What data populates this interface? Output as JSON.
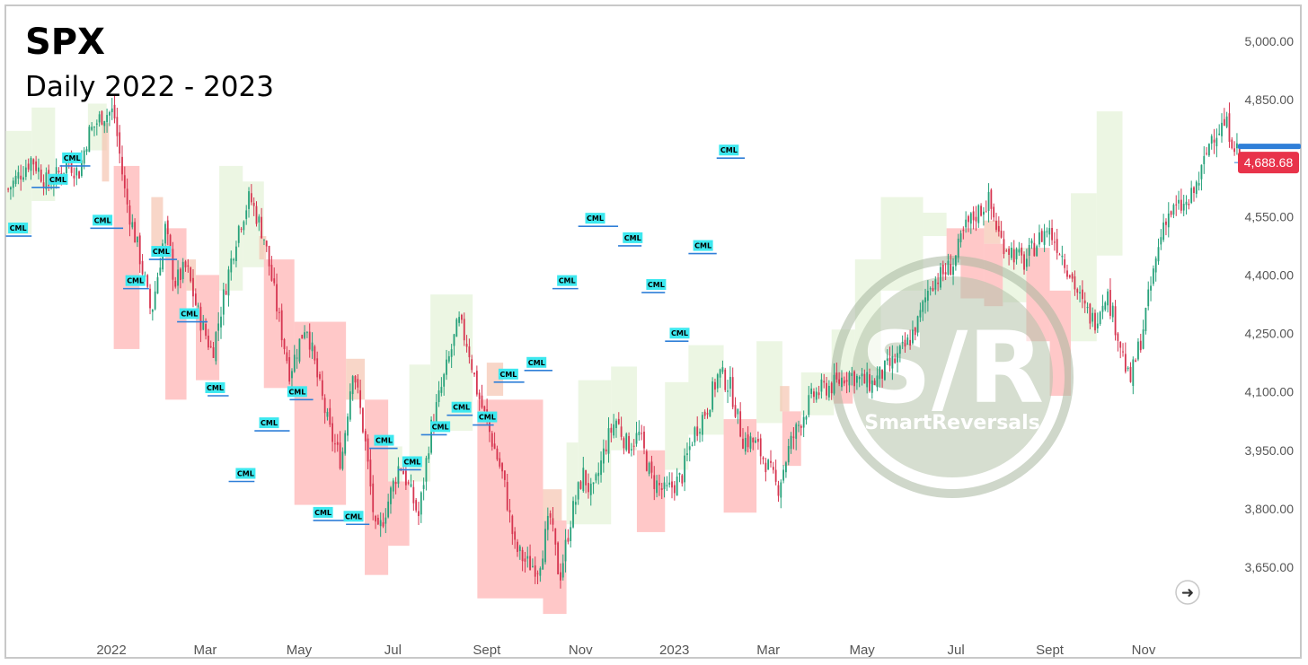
{
  "chart_data": {
    "type": "candlestick",
    "title": "SPX",
    "subtitle": "Daily 2022 - 2023",
    "ylim": [
      3520,
      5040
    ],
    "y_ticks": [
      "5,000.00",
      "4,850.00",
      "4,550.00",
      "4,400.00",
      "4,250.00",
      "4,100.00",
      "3,950.00",
      "3,800.00",
      "3,650.00"
    ],
    "y_tick_values": [
      5000,
      4850,
      4550,
      4400,
      4250,
      4100,
      3950,
      3800,
      3650
    ],
    "x_ticks": [
      {
        "label": "2022",
        "t": 6
      },
      {
        "label": "Mar",
        "t": 10
      },
      {
        "label": "May",
        "t": 14
      },
      {
        "label": "Jul",
        "t": 18
      },
      {
        "label": "Sept",
        "t": 22
      },
      {
        "label": "Nov",
        "t": 26
      },
      {
        "label": "2023",
        "t": 30
      },
      {
        "label": "Mar",
        "t": 34
      },
      {
        "label": "May",
        "t": 38
      },
      {
        "label": "Jul",
        "t": 42
      },
      {
        "label": "Sept",
        "t": 46
      },
      {
        "label": "Nov",
        "t": 50
      }
    ],
    "t_range": [
      1.5,
      54.3
    ],
    "last_price": "4,688.68",
    "last_price_value": 4688.68,
    "cml_label": "CML",
    "price_path": [
      [
        1.6,
        4620
      ],
      [
        2.6,
        4700
      ],
      [
        3.3,
        4630
      ],
      [
        4.2,
        4690
      ],
      [
        4.6,
        4660
      ],
      [
        5.0,
        4760
      ],
      [
        5.6,
        4810
      ],
      [
        6.1,
        4820
      ],
      [
        6.6,
        4600
      ],
      [
        7.2,
        4450
      ],
      [
        7.7,
        4300
      ],
      [
        8.3,
        4520
      ],
      [
        8.7,
        4380
      ],
      [
        9.2,
        4420
      ],
      [
        9.7,
        4300
      ],
      [
        10.3,
        4200
      ],
      [
        10.9,
        4380
      ],
      [
        11.4,
        4520
      ],
      [
        11.9,
        4600
      ],
      [
        12.5,
        4500
      ],
      [
        13.1,
        4300
      ],
      [
        13.6,
        4150
      ],
      [
        14.3,
        4280
      ],
      [
        14.8,
        4130
      ],
      [
        15.3,
        4000
      ],
      [
        15.8,
        3920
      ],
      [
        16.3,
        4170
      ],
      [
        16.8,
        3980
      ],
      [
        17.3,
        3720
      ],
      [
        17.8,
        3820
      ],
      [
        18.3,
        3920
      ],
      [
        19.1,
        3780
      ],
      [
        19.6,
        4000
      ],
      [
        20.2,
        4140
      ],
      [
        20.8,
        4280
      ],
      [
        21.2,
        4220
      ],
      [
        21.6,
        4100
      ],
      [
        22.2,
        3980
      ],
      [
        22.7,
        3880
      ],
      [
        23.2,
        3700
      ],
      [
        23.7,
        3660
      ],
      [
        24.2,
        3650
      ],
      [
        24.7,
        3780
      ],
      [
        25.1,
        3620
      ],
      [
        25.6,
        3780
      ],
      [
        26.1,
        3890
      ],
      [
        26.5,
        3830
      ],
      [
        27.1,
        3970
      ],
      [
        27.5,
        4030
      ],
      [
        28.0,
        3960
      ],
      [
        28.5,
        3990
      ],
      [
        29.0,
        3880
      ],
      [
        29.6,
        3840
      ],
      [
        30.3,
        3880
      ],
      [
        30.8,
        3990
      ],
      [
        31.4,
        4060
      ],
      [
        31.9,
        4150
      ],
      [
        32.4,
        4110
      ],
      [
        32.9,
        3980
      ],
      [
        33.4,
        3970
      ],
      [
        33.9,
        3920
      ],
      [
        34.4,
        3850
      ],
      [
        34.9,
        3960
      ],
      [
        35.4,
        4030
      ],
      [
        35.9,
        4090
      ],
      [
        36.4,
        4110
      ],
      [
        36.9,
        4120
      ],
      [
        37.4,
        4150
      ],
      [
        37.9,
        4130
      ],
      [
        38.4,
        4120
      ],
      [
        38.9,
        4150
      ],
      [
        39.4,
        4180
      ],
      [
        39.9,
        4220
      ],
      [
        40.4,
        4280
      ],
      [
        40.9,
        4380
      ],
      [
        41.4,
        4400
      ],
      [
        41.9,
        4430
      ],
      [
        42.4,
        4520
      ],
      [
        42.9,
        4560
      ],
      [
        43.4,
        4590
      ],
      [
        43.9,
        4490
      ],
      [
        44.4,
        4460
      ],
      [
        44.9,
        4430
      ],
      [
        45.4,
        4480
      ],
      [
        45.9,
        4520
      ],
      [
        46.4,
        4470
      ],
      [
        46.9,
        4400
      ],
      [
        47.4,
        4320
      ],
      [
        47.9,
        4280
      ],
      [
        48.4,
        4360
      ],
      [
        48.9,
        4250
      ],
      [
        49.4,
        4120
      ],
      [
        49.9,
        4240
      ],
      [
        50.4,
        4400
      ],
      [
        50.9,
        4550
      ],
      [
        51.4,
        4570
      ],
      [
        51.9,
        4580
      ],
      [
        52.4,
        4650
      ],
      [
        52.9,
        4760
      ],
      [
        53.5,
        4790
      ],
      [
        54.2,
        4690
      ]
    ],
    "zones": [
      {
        "t0": 1.5,
        "t1": 2.6,
        "y0": 4505,
        "y1": 4770,
        "color": "green"
      },
      {
        "t0": 2.6,
        "t1": 3.6,
        "y0": 4590,
        "y1": 4830,
        "color": "green"
      },
      {
        "t0": 5.0,
        "t1": 5.8,
        "y0": 4720,
        "y1": 4840,
        "color": "green"
      },
      {
        "t0": 5.6,
        "t1": 5.9,
        "y0": 4640,
        "y1": 4790,
        "color": "orange"
      },
      {
        "t0": 6.1,
        "t1": 7.2,
        "y0": 4210,
        "y1": 4680,
        "color": "red"
      },
      {
        "t0": 7.7,
        "t1": 8.2,
        "y0": 4460,
        "y1": 4600,
        "color": "orange"
      },
      {
        "t0": 8.3,
        "t1": 9.2,
        "y0": 4080,
        "y1": 4520,
        "color": "red"
      },
      {
        "t0": 9.2,
        "t1": 9.6,
        "y0": 4360,
        "y1": 4440,
        "color": "orange"
      },
      {
        "t0": 9.6,
        "t1": 10.6,
        "y0": 4130,
        "y1": 4400,
        "color": "red"
      },
      {
        "t0": 10.6,
        "t1": 11.6,
        "y0": 4360,
        "y1": 4680,
        "color": "green"
      },
      {
        "t0": 11.6,
        "t1": 12.5,
        "y0": 4420,
        "y1": 4640,
        "color": "green"
      },
      {
        "t0": 12.3,
        "t1": 12.6,
        "y0": 4440,
        "y1": 4500,
        "color": "orange"
      },
      {
        "t0": 12.5,
        "t1": 13.8,
        "y0": 4110,
        "y1": 4440,
        "color": "red"
      },
      {
        "t0": 13.8,
        "t1": 16.0,
        "y0": 3810,
        "y1": 4280,
        "color": "red"
      },
      {
        "t0": 16.0,
        "t1": 16.8,
        "y0": 4080,
        "y1": 4185,
        "color": "orange"
      },
      {
        "t0": 16.8,
        "t1": 17.8,
        "y0": 3630,
        "y1": 4080,
        "color": "red"
      },
      {
        "t0": 17.8,
        "t1": 18.7,
        "y0": 3705,
        "y1": 3870,
        "color": "red"
      },
      {
        "t0": 17.8,
        "t1": 18.4,
        "y0": 3870,
        "y1": 3960,
        "color": "green"
      },
      {
        "t0": 18.7,
        "t1": 19.6,
        "y0": 3870,
        "y1": 4170,
        "color": "green"
      },
      {
        "t0": 19.6,
        "t1": 21.4,
        "y0": 4000,
        "y1": 4350,
        "color": "green"
      },
      {
        "t0": 22.0,
        "t1": 22.7,
        "y0": 4090,
        "y1": 4175,
        "color": "orange"
      },
      {
        "t0": 21.6,
        "t1": 24.4,
        "y0": 3570,
        "y1": 4080,
        "color": "red"
      },
      {
        "t0": 24.4,
        "t1": 25.2,
        "y0": 3770,
        "y1": 3850,
        "color": "orange"
      },
      {
        "t0": 24.4,
        "t1": 25.4,
        "y0": 3530,
        "y1": 3770,
        "color": "red"
      },
      {
        "t0": 25.4,
        "t1": 25.9,
        "y0": 3760,
        "y1": 3970,
        "color": "green"
      },
      {
        "t0": 25.9,
        "t1": 27.3,
        "y0": 3760,
        "y1": 4130,
        "color": "green"
      },
      {
        "t0": 27.3,
        "t1": 28.4,
        "y0": 3950,
        "y1": 4165,
        "color": "green"
      },
      {
        "t0": 28.4,
        "t1": 29.6,
        "y0": 3740,
        "y1": 3950,
        "color": "red"
      },
      {
        "t0": 29.6,
        "t1": 30.6,
        "y0": 3900,
        "y1": 4125,
        "color": "green"
      },
      {
        "t0": 30.6,
        "t1": 32.1,
        "y0": 3990,
        "y1": 4220,
        "color": "green"
      },
      {
        "t0": 32.1,
        "t1": 33.5,
        "y0": 3790,
        "y1": 4030,
        "color": "red"
      },
      {
        "t0": 33.5,
        "t1": 34.6,
        "y0": 4020,
        "y1": 4230,
        "color": "green"
      },
      {
        "t0": 34.5,
        "t1": 34.9,
        "y0": 4050,
        "y1": 4115,
        "color": "orange"
      },
      {
        "t0": 34.6,
        "t1": 35.4,
        "y0": 3910,
        "y1": 4050,
        "color": "red"
      },
      {
        "t0": 35.4,
        "t1": 36.8,
        "y0": 4040,
        "y1": 4150,
        "color": "green"
      },
      {
        "t0": 36.8,
        "t1": 37.6,
        "y0": 4070,
        "y1": 4150,
        "color": "red"
      },
      {
        "t0": 36.7,
        "t1": 37.7,
        "y0": 4150,
        "y1": 4260,
        "color": "green"
      },
      {
        "t0": 37.7,
        "t1": 38.8,
        "y0": 4155,
        "y1": 4440,
        "color": "green"
      },
      {
        "t0": 38.8,
        "t1": 39.6,
        "y0": 4360,
        "y1": 4600,
        "color": "green"
      },
      {
        "t0": 39.6,
        "t1": 40.6,
        "y0": 4360,
        "y1": 4600,
        "color": "green"
      },
      {
        "t0": 40.6,
        "t1": 41.6,
        "y0": 4500,
        "y1": 4560,
        "color": "green"
      },
      {
        "t0": 41.6,
        "t1": 42.2,
        "y0": 4440,
        "y1": 4520,
        "color": "red"
      },
      {
        "t0": 42.2,
        "t1": 43.2,
        "y0": 4340,
        "y1": 4520,
        "color": "red"
      },
      {
        "t0": 43.2,
        "t1": 43.9,
        "y0": 4480,
        "y1": 4540,
        "color": "orange"
      },
      {
        "t0": 43.2,
        "t1": 44.0,
        "y0": 4320,
        "y1": 4480,
        "color": "red"
      },
      {
        "t0": 44.0,
        "t1": 45.0,
        "y0": 4330,
        "y1": 4470,
        "color": "green"
      },
      {
        "t0": 45.0,
        "t1": 46.0,
        "y0": 4230,
        "y1": 4470,
        "color": "red"
      },
      {
        "t0": 46.0,
        "t1": 46.9,
        "y0": 4090,
        "y1": 4360,
        "color": "red"
      },
      {
        "t0": 46.9,
        "t1": 48.0,
        "y0": 4230,
        "y1": 4610,
        "color": "green"
      },
      {
        "t0": 48.0,
        "t1": 49.1,
        "y0": 4450,
        "y1": 4820,
        "color": "green"
      }
    ],
    "cml_levels": [
      {
        "t0": 1.5,
        "t1": 2.6,
        "y": 4500,
        "label_t": 1.6
      },
      {
        "t0": 2.6,
        "t1": 3.8,
        "y": 4625,
        "label_t": 3.3
      },
      {
        "t0": 3.8,
        "t1": 5.1,
        "y": 4680,
        "label_t": 3.9
      },
      {
        "t0": 5.1,
        "t1": 6.5,
        "y": 4520,
        "label_t": 5.2
      },
      {
        "t0": 6.5,
        "t1": 7.6,
        "y": 4365,
        "label_t": 6.6
      },
      {
        "t0": 7.6,
        "t1": 8.8,
        "y": 4440,
        "label_t": 7.7
      },
      {
        "t0": 8.8,
        "t1": 10.1,
        "y": 4280,
        "label_t": 8.9
      },
      {
        "t0": 10.1,
        "t1": 11.0,
        "y": 4090,
        "label_t": 10.0
      },
      {
        "t0": 11.0,
        "t1": 12.1,
        "y": 3870,
        "label_t": 11.3
      },
      {
        "t0": 12.1,
        "t1": 13.6,
        "y": 4000,
        "label_t": 12.3
      },
      {
        "t0": 13.6,
        "t1": 14.6,
        "y": 4080,
        "label_t": 13.5
      },
      {
        "t0": 14.6,
        "t1": 16.0,
        "y": 3770,
        "label_t": 14.6
      },
      {
        "t0": 16.0,
        "t1": 17.0,
        "y": 3760,
        "label_t": 15.9
      },
      {
        "t0": 17.0,
        "t1": 18.2,
        "y": 3955,
        "label_t": 17.2
      },
      {
        "t0": 18.2,
        "t1": 19.2,
        "y": 3900,
        "label_t": 18.4
      },
      {
        "t0": 19.2,
        "t1": 20.3,
        "y": 3990,
        "label_t": 19.6
      },
      {
        "t0": 20.3,
        "t1": 21.4,
        "y": 4040,
        "label_t": 20.5
      },
      {
        "t0": 21.4,
        "t1": 22.3,
        "y": 4015,
        "label_t": 21.6
      },
      {
        "t0": 22.3,
        "t1": 23.6,
        "y": 4125,
        "label_t": 22.5
      },
      {
        "t0": 23.6,
        "t1": 24.8,
        "y": 4155,
        "label_t": 23.7
      },
      {
        "t0": 24.8,
        "t1": 25.9,
        "y": 4365,
        "label_t": 25.0
      },
      {
        "t0": 25.9,
        "t1": 27.6,
        "y": 4525,
        "label_t": 26.2
      },
      {
        "t0": 27.6,
        "t1": 28.6,
        "y": 4475,
        "label_t": 27.8
      },
      {
        "t0": 28.6,
        "t1": 29.6,
        "y": 4355,
        "label_t": 28.8
      },
      {
        "t0": 29.6,
        "t1": 30.6,
        "y": 4230,
        "label_t": 29.8
      },
      {
        "t0": 30.6,
        "t1": 31.8,
        "y": 4455,
        "label_t": 30.8
      },
      {
        "t0": 31.8,
        "t1": 33.0,
        "y": 4700,
        "label_t": 31.9
      }
    ]
  }
}
